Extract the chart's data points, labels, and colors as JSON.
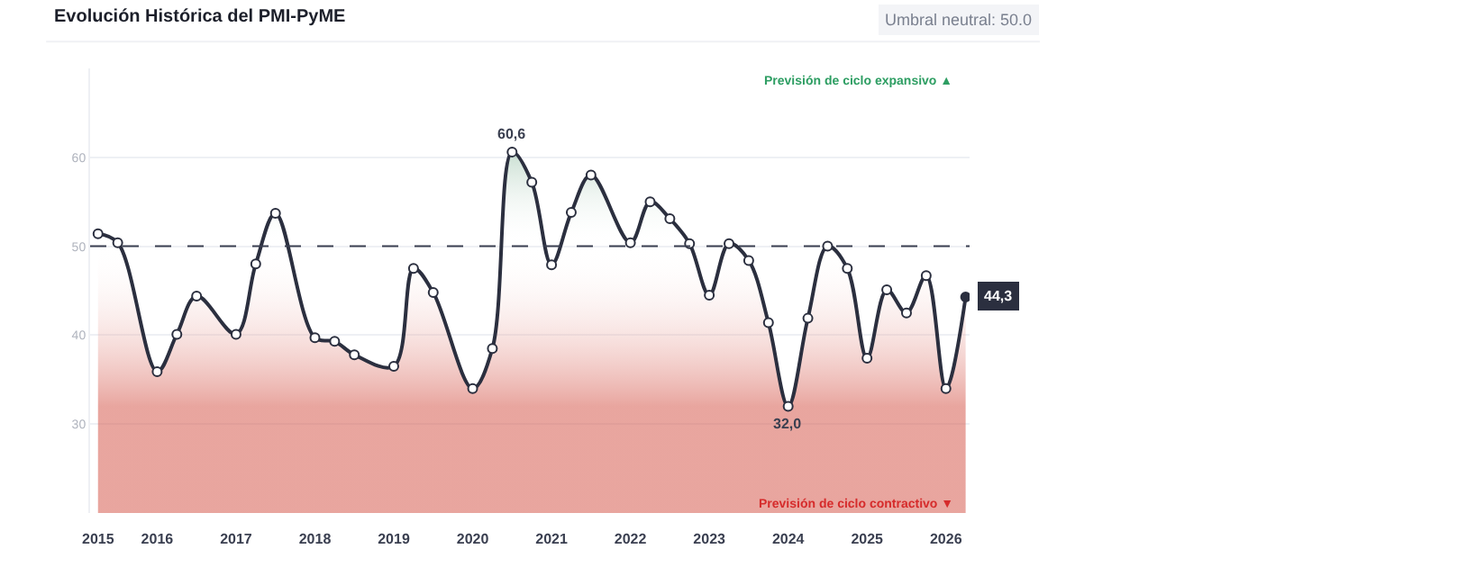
{
  "chart_data": {
    "type": "area",
    "title": "Evolución Histórica del PMI-PyME",
    "x": [
      2015.25,
      2015.5,
      2016,
      2016.25,
      2016.5,
      2017,
      2017.25,
      2017.5,
      2018,
      2018.25,
      2018.5,
      2019,
      2019.25,
      2019.5,
      2020,
      2020.25,
      2020.5,
      2020.75,
      2021,
      2021.25,
      2021.5,
      2022,
      2022.25,
      2022.5,
      2022.75,
      2023,
      2023.25,
      2023.5,
      2023.75,
      2024,
      2024.25,
      2024.5,
      2024.75,
      2025,
      2025.25,
      2025.5,
      2025.75,
      2026,
      2026.25
    ],
    "series": [
      {
        "color": "#2b2f3f",
        "values": [
          51.4,
          50.4,
          35.9,
          40.1,
          44.4,
          40.1,
          48.0,
          53.7,
          39.7,
          39.3,
          37.8,
          36.5,
          47.5,
          44.8,
          34.0,
          38.5,
          60.6,
          57.2,
          47.9,
          53.8,
          58.0,
          50.4,
          55.0,
          53.1,
          50.3,
          44.5,
          50.3,
          48.4,
          41.4,
          32.0,
          41.9,
          50.0,
          47.5,
          37.4,
          45.1,
          42.5,
          46.7,
          34.0,
          44.3
        ],
        "value_labels": [
          null,
          null,
          null,
          null,
          null,
          null,
          null,
          null,
          null,
          null,
          null,
          null,
          null,
          null,
          null,
          null,
          "60,6",
          null,
          null,
          null,
          null,
          null,
          null,
          null,
          null,
          null,
          null,
          null,
          null,
          "32,0",
          null,
          null,
          null,
          null,
          null,
          null,
          null,
          null,
          "44,3"
        ]
      }
    ],
    "xlim": [
      2015.15,
      2026.3
    ],
    "xticks": [
      {
        "value": 2015.25,
        "label": "2015"
      },
      2016,
      2017,
      2018,
      2019,
      2020,
      2021,
      2022,
      2023,
      2024,
      2025,
      2026
    ],
    "ylim": [
      20,
      70
    ],
    "yticks": [
      30,
      40,
      50,
      60
    ],
    "grid": "y",
    "marker": "circle",
    "ref_lines": [
      {
        "axis": "y",
        "value": 50,
        "line_style": "dashed",
        "color": "#3a3f50"
      }
    ],
    "annotations": [
      "Umbral neutral: 50.0",
      "Previsión de ciclo expansivo ▲",
      "Previsión de ciclo contractivo ▼"
    ]
  }
}
